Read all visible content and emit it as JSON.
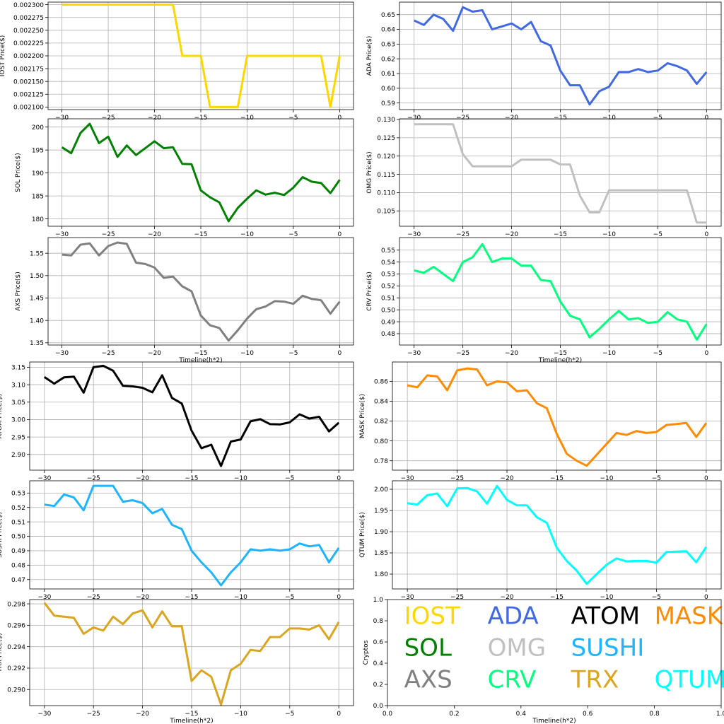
{
  "chart_data": [
    {
      "type": "line",
      "ylabel": "IOST Price($)",
      "xlabel": "",
      "color": "#FFD700",
      "xticks": [
        -30,
        -25,
        -20,
        -15,
        -10,
        -5,
        0
      ],
      "xtick_labels": [
        "−30",
        "−25",
        "−20",
        "−15",
        "−10",
        "−5",
        "0"
      ],
      "ylim": [
        0.002095,
        0.002305
      ],
      "yticks": [
        0.0021,
        0.002125,
        0.00215,
        0.002175,
        0.0022,
        0.002225,
        0.00225,
        0.002275,
        0.0023
      ],
      "ytick_labels": [
        "0.002100",
        "0.002125",
        "0.002150",
        "0.002175",
        "0.002200",
        "0.002225",
        "0.002250",
        "0.002275",
        "0.002300"
      ],
      "x": [
        -30,
        -29,
        -28,
        -27,
        -26,
        -25,
        -24,
        -23,
        -22,
        -21,
        -20,
        -19,
        -18,
        -17,
        -16,
        -15,
        -14,
        -13,
        -12,
        -11,
        -10,
        -9,
        -8,
        -7,
        -6,
        -5,
        -4,
        -3,
        -2,
        -1,
        0
      ],
      "values": [
        0.0023,
        0.0023,
        0.0023,
        0.0023,
        0.0023,
        0.0023,
        0.0023,
        0.0023,
        0.0023,
        0.0023,
        0.0023,
        0.0023,
        0.0023,
        0.0022,
        0.0022,
        0.0022,
        0.0021,
        0.0021,
        0.0021,
        0.0021,
        0.0022,
        0.0022,
        0.0022,
        0.0022,
        0.0022,
        0.0022,
        0.0022,
        0.0022,
        0.0022,
        0.0021,
        0.0022
      ]
    },
    {
      "type": "line",
      "ylabel": "ADA Price($)",
      "xlabel": "",
      "color": "#4169E1",
      "xticks": [
        -30,
        -25,
        -20,
        -15,
        -10,
        -5,
        0
      ],
      "xtick_labels": [
        "−30",
        "−25",
        "−20",
        "−15",
        "−10",
        "−5",
        "0"
      ],
      "ylim": [
        0.5855,
        0.6585
      ],
      "yticks": [
        0.59,
        0.6,
        0.61,
        0.62,
        0.63,
        0.64,
        0.65
      ],
      "ytick_labels": [
        "0.59",
        "0.60",
        "0.61",
        "0.62",
        "0.63",
        "0.64",
        "0.65"
      ],
      "x": [
        -30,
        -29,
        -28,
        -27,
        -26,
        -25,
        -24,
        -23,
        -22,
        -21,
        -20,
        -19,
        -18,
        -17,
        -16,
        -15,
        -14,
        -13,
        -12,
        -11,
        -10,
        -9,
        -8,
        -7,
        -6,
        -5,
        -4,
        -3,
        -2,
        -1,
        0
      ],
      "values": [
        0.646,
        0.643,
        0.65,
        0.647,
        0.639,
        0.655,
        0.652,
        0.653,
        0.64,
        0.642,
        0.644,
        0.64,
        0.645,
        0.632,
        0.629,
        0.612,
        0.602,
        0.602,
        0.589,
        0.598,
        0.601,
        0.611,
        0.611,
        0.613,
        0.611,
        0.612,
        0.617,
        0.615,
        0.612,
        0.603,
        0.611
      ]
    },
    {
      "type": "line",
      "ylabel": "SOL Price($)",
      "xlabel": "",
      "color": "#008000",
      "xticks": [
        -30,
        -25,
        -20,
        -15,
        -10,
        -5,
        0
      ],
      "xtick_labels": [
        "−30",
        "−25",
        "−20",
        "−15",
        "−10",
        "−5",
        "0"
      ],
      "ylim": [
        178.4,
        201.8
      ],
      "yticks": [
        180,
        185,
        190,
        195,
        200
      ],
      "ytick_labels": [
        "180",
        "185",
        "190",
        "195",
        "200"
      ],
      "x": [
        -30,
        -29,
        -28,
        -27,
        -26,
        -25,
        -24,
        -23,
        -22,
        -21,
        -20,
        -19,
        -18,
        -17,
        -16,
        -15,
        -14,
        -13,
        -12,
        -11,
        -10,
        -9,
        -8,
        -7,
        -6,
        -5,
        -4,
        -3,
        -2,
        -1,
        0
      ],
      "values": [
        195.6,
        194.3,
        198.7,
        200.7,
        196.5,
        197.9,
        193.5,
        196.0,
        193.9,
        195.4,
        196.9,
        195.4,
        195.6,
        192.0,
        191.9,
        186.2,
        184.7,
        183.6,
        179.5,
        182.4,
        184.4,
        186.2,
        185.3,
        185.7,
        185.2,
        186.8,
        189.1,
        188.1,
        187.8,
        185.6,
        188.5
      ]
    },
    {
      "type": "line",
      "ylabel": "OMG Price($)",
      "xlabel": "",
      "color": "#C0C0C0",
      "xticks": [
        -30,
        -25,
        -20,
        -15,
        -10,
        -5,
        0
      ],
      "xtick_labels": [
        "−30",
        "−25",
        "−20",
        "−15",
        "−10",
        "−5",
        "0"
      ],
      "ylim": [
        0.1008,
        0.1302
      ],
      "yticks": [
        0.105,
        0.11,
        0.115,
        0.12,
        0.125,
        0.13
      ],
      "ytick_labels": [
        "0.105",
        "0.110",
        "0.115",
        "0.120",
        "0.125",
        "0.130"
      ],
      "x": [
        -30,
        -29,
        -28,
        -27,
        -26,
        -25,
        -24,
        -23,
        -22,
        -21,
        -20,
        -19,
        -18,
        -17,
        -16,
        -15,
        -14,
        -13,
        -12,
        -11,
        -10,
        -9,
        -8,
        -7,
        -6,
        -5,
        -4,
        -3,
        -2,
        -1,
        0
      ],
      "values": [
        0.1287,
        0.1287,
        0.1287,
        0.1287,
        0.1287,
        0.1205,
        0.1172,
        0.1172,
        0.1172,
        0.1172,
        0.1172,
        0.119,
        0.119,
        0.119,
        0.119,
        0.1177,
        0.1177,
        0.1092,
        0.1046,
        0.1046,
        0.1106,
        0.1106,
        0.1106,
        0.1106,
        0.1106,
        0.1106,
        0.1106,
        0.1106,
        0.1106,
        0.1018,
        0.1018
      ]
    },
    {
      "type": "line",
      "ylabel": "AXS Price($)",
      "xlabel": "Timeline(h*2)",
      "color": "#808080",
      "xticks": [
        -30,
        -25,
        -20,
        -15,
        -10,
        -5,
        0
      ],
      "xtick_labels": [
        "−30",
        "−25",
        "−20",
        "−15",
        "−10",
        "−5",
        "0"
      ],
      "ylim": [
        1.345,
        1.585
      ],
      "yticks": [
        1.35,
        1.4,
        1.45,
        1.5,
        1.55
      ],
      "ytick_labels": [
        "1.35",
        "1.40",
        "1.45",
        "1.50",
        "1.55"
      ],
      "x": [
        -30,
        -29,
        -28,
        -27,
        -26,
        -25,
        -24,
        -23,
        -22,
        -21,
        -20,
        -19,
        -18,
        -17,
        -16,
        -15,
        -14,
        -13,
        -12,
        -11,
        -10,
        -9,
        -8,
        -7,
        -6,
        -5,
        -4,
        -3,
        -2,
        -1,
        0
      ],
      "values": [
        1.547,
        1.545,
        1.569,
        1.572,
        1.545,
        1.566,
        1.574,
        1.571,
        1.529,
        1.526,
        1.518,
        1.495,
        1.498,
        1.476,
        1.465,
        1.411,
        1.389,
        1.383,
        1.355,
        1.378,
        1.404,
        1.425,
        1.431,
        1.443,
        1.442,
        1.437,
        1.455,
        1.448,
        1.445,
        1.415,
        1.442
      ]
    },
    {
      "type": "line",
      "ylabel": "CRV Price($)",
      "xlabel": "Timeline(h*2)",
      "color": "#00FF7F",
      "xticks": [
        -30,
        -25,
        -20,
        -15,
        -10,
        -5,
        0
      ],
      "xtick_labels": [
        "−30",
        "−25",
        "−20",
        "−15",
        "−10",
        "−5",
        "0"
      ],
      "ylim": [
        0.4705,
        0.5605
      ],
      "yticks": [
        0.48,
        0.49,
        0.5,
        0.51,
        0.52,
        0.53,
        0.54,
        0.55
      ],
      "ytick_labels": [
        "0.48",
        "0.49",
        "0.50",
        "0.51",
        "0.52",
        "0.53",
        "0.54",
        "0.55"
      ],
      "x": [
        -30,
        -29,
        -28,
        -27,
        -26,
        -25,
        -24,
        -23,
        -22,
        -21,
        -20,
        -19,
        -18,
        -17,
        -16,
        -15,
        -14,
        -13,
        -12,
        -11,
        -10,
        -9,
        -8,
        -7,
        -6,
        -5,
        -4,
        -3,
        -2,
        -1,
        0
      ],
      "values": [
        0.533,
        0.531,
        0.536,
        0.53,
        0.524,
        0.54,
        0.544,
        0.555,
        0.54,
        0.543,
        0.543,
        0.537,
        0.537,
        0.525,
        0.524,
        0.507,
        0.495,
        0.492,
        0.477,
        0.484,
        0.492,
        0.499,
        0.492,
        0.493,
        0.489,
        0.49,
        0.498,
        0.492,
        0.49,
        0.475,
        0.488
      ]
    },
    {
      "type": "line",
      "ylabel": "ATOM  Price($)",
      "xlabel": "",
      "color": "#000000",
      "xticks": [
        -30,
        -25,
        -20,
        -15,
        -10,
        -5,
        0
      ],
      "xtick_labels": [
        "−30",
        "−25",
        "−20",
        "−15",
        "−10",
        "−5",
        "0"
      ],
      "ylim": [
        2.855,
        3.165
      ],
      "yticks": [
        2.9,
        2.95,
        3.0,
        3.05,
        3.1,
        3.15
      ],
      "ytick_labels": [
        "2.90",
        "2.95",
        "3.00",
        "3.05",
        "3.10",
        "3.15"
      ],
      "x": [
        -30,
        -29,
        -28,
        -27,
        -26,
        -25,
        -24,
        -23,
        -22,
        -21,
        -20,
        -19,
        -18,
        -17,
        -16,
        -15,
        -14,
        -13,
        -12,
        -11,
        -10,
        -9,
        -8,
        -7,
        -6,
        -5,
        -4,
        -3,
        -2,
        -1,
        0
      ],
      "values": [
        3.122,
        3.103,
        3.121,
        3.123,
        3.077,
        3.15,
        3.154,
        3.14,
        3.097,
        3.095,
        3.091,
        3.078,
        3.127,
        3.062,
        3.046,
        2.968,
        2.918,
        2.928,
        2.867,
        2.937,
        2.943,
        2.995,
        3.001,
        2.987,
        2.986,
        2.992,
        3.015,
        3.003,
        3.008,
        2.966,
        2.991
      ]
    },
    {
      "type": "line",
      "ylabel": "MASK  Price($)",
      "xlabel": "",
      "color": "#FF8C00",
      "xticks": [
        -30,
        -25,
        -20,
        -15,
        -10,
        -5,
        0
      ],
      "xtick_labels": [
        "−30",
        "−25",
        "−20",
        "−15",
        "−10",
        "−5",
        "0"
      ],
      "ylim": [
        0.7705,
        0.8795
      ],
      "yticks": [
        0.78,
        0.8,
        0.82,
        0.84,
        0.86
      ],
      "ytick_labels": [
        "0.78",
        "0.80",
        "0.82",
        "0.84",
        "0.86"
      ],
      "x": [
        -30,
        -29,
        -28,
        -27,
        -26,
        -25,
        -24,
        -23,
        -22,
        -21,
        -20,
        -19,
        -18,
        -17,
        -16,
        -15,
        -14,
        -13,
        -12,
        -11,
        -10,
        -9,
        -8,
        -7,
        -6,
        -5,
        -4,
        -3,
        -2,
        -1,
        0
      ],
      "values": [
        0.856,
        0.854,
        0.866,
        0.865,
        0.851,
        0.871,
        0.873,
        0.872,
        0.856,
        0.86,
        0.859,
        0.85,
        0.851,
        0.838,
        0.833,
        0.807,
        0.787,
        0.78,
        0.775,
        0.786,
        0.797,
        0.808,
        0.806,
        0.81,
        0.808,
        0.809,
        0.816,
        0.817,
        0.818,
        0.804,
        0.818
      ]
    },
    {
      "type": "line",
      "ylabel": "SUSHI  Price($)",
      "xlabel": "",
      "color": "#1EB4FF",
      "xticks": [
        -30,
        -25,
        -20,
        -15,
        -10,
        -5,
        0
      ],
      "xtick_labels": [
        "−30",
        "−25",
        "−20",
        "−15",
        "−10",
        "−5",
        "0"
      ],
      "ylim": [
        0.4635,
        0.5385
      ],
      "yticks": [
        0.47,
        0.48,
        0.49,
        0.5,
        0.51,
        0.52,
        0.53
      ],
      "ytick_labels": [
        "0.47",
        "0.48",
        "0.49",
        "0.50",
        "0.51",
        "0.52",
        "0.53"
      ],
      "x": [
        -30,
        -29,
        -28,
        -27,
        -26,
        -25,
        -24,
        -23,
        -22,
        -21,
        -20,
        -19,
        -18,
        -17,
        -16,
        -15,
        -14,
        -13,
        -12,
        -11,
        -10,
        -9,
        -8,
        -7,
        -6,
        -5,
        -4,
        -3,
        -2,
        -1,
        0
      ],
      "values": [
        0.522,
        0.521,
        0.529,
        0.527,
        0.518,
        0.535,
        0.535,
        0.535,
        0.524,
        0.525,
        0.523,
        0.516,
        0.519,
        0.508,
        0.505,
        0.49,
        0.482,
        0.475,
        0.466,
        0.475,
        0.482,
        0.491,
        0.49,
        0.491,
        0.49,
        0.491,
        0.495,
        0.493,
        0.494,
        0.482,
        0.492
      ]
    },
    {
      "type": "line",
      "ylabel": "QTUM Price($)",
      "xlabel": "",
      "color": "#00FFFF",
      "xticks": [
        -30,
        -25,
        -20,
        -15,
        -10,
        -5,
        0
      ],
      "xtick_labels": [
        "−30",
        "−25",
        "−20",
        "−15",
        "−10",
        "−5",
        "0"
      ],
      "ylim": [
        1.765,
        2.02
      ],
      "yticks": [
        1.8,
        1.85,
        1.9,
        1.95,
        2.0
      ],
      "ytick_labels": [
        "1.80",
        "1.85",
        "1.90",
        "1.95",
        "2.00"
      ],
      "x": [
        -30,
        -29,
        -28,
        -27,
        -26,
        -25,
        -24,
        -23,
        -22,
        -21,
        -20,
        -19,
        -18,
        -17,
        -16,
        -15,
        -14,
        -13,
        -12,
        -11,
        -10,
        -9,
        -8,
        -7,
        -6,
        -5,
        -4,
        -3,
        -2,
        -1,
        0
      ],
      "values": [
        1.967,
        1.964,
        1.986,
        1.99,
        1.96,
        2.002,
        2.003,
        1.995,
        1.966,
        2.008,
        1.975,
        1.962,
        1.962,
        1.934,
        1.921,
        1.862,
        1.831,
        1.808,
        1.777,
        1.8,
        1.822,
        1.837,
        1.83,
        1.831,
        1.831,
        1.827,
        1.852,
        1.853,
        1.854,
        1.828,
        1.864
      ]
    },
    {
      "type": "line",
      "ylabel": "TRX Price($)",
      "xlabel": "Timeline(h*2)",
      "color": "#DAA520",
      "xticks": [
        -30,
        -25,
        -20,
        -15,
        -10,
        -5,
        0
      ],
      "xtick_labels": [
        "−30",
        "−25",
        "−20",
        "−15",
        "−10",
        "−5",
        "0"
      ],
      "ylim": [
        0.2885,
        0.2984
      ],
      "yticks": [
        0.29,
        0.292,
        0.294,
        0.296,
        0.298
      ],
      "ytick_labels": [
        "0.290",
        "0.292",
        "0.294",
        "0.296",
        "0.298"
      ],
      "x": [
        -30,
        -29,
        -28,
        -27,
        -26,
        -25,
        -24,
        -23,
        -22,
        -21,
        -20,
        -19,
        -18,
        -17,
        -16,
        -15,
        -14,
        -13,
        -12,
        -11,
        -10,
        -9,
        -8,
        -7,
        -6,
        -5,
        -4,
        -3,
        -2,
        -1,
        0
      ],
      "values": [
        0.2981,
        0.2969,
        0.2968,
        0.2967,
        0.2952,
        0.2958,
        0.2955,
        0.2968,
        0.2961,
        0.2971,
        0.2974,
        0.2958,
        0.2973,
        0.2959,
        0.2959,
        0.2908,
        0.2918,
        0.2912,
        0.2886,
        0.2918,
        0.2924,
        0.2937,
        0.2936,
        0.2949,
        0.2949,
        0.2957,
        0.2957,
        0.2956,
        0.296,
        0.2947,
        0.2963
      ]
    },
    {
      "type": "text",
      "ylabel": "Cryptos",
      "xlabel": "Timeline(h*2)",
      "xlim": [
        0,
        1
      ],
      "ylim": [
        0,
        1
      ],
      "xticks": [
        0,
        0.2,
        0.4,
        0.6,
        0.8,
        1.0
      ],
      "xtick_labels": [
        "0.0",
        "0.2",
        "0.4",
        "0.6",
        "0.8",
        "1.0"
      ],
      "yticks": [
        0,
        0.2,
        0.4,
        0.6,
        0.8,
        1.0
      ],
      "ytick_labels": [
        "0.0",
        "0.2",
        "0.4",
        "0.6",
        "0.8",
        "1.0"
      ],
      "labels": [
        {
          "text": "IOST",
          "color": "#FFD700",
          "x": 0.05,
          "y": 0.77
        },
        {
          "text": "ADA",
          "color": "#4169E1",
          "x": 0.3,
          "y": 0.77
        },
        {
          "text": "ATOM",
          "color": "#000000",
          "x": 0.55,
          "y": 0.77
        },
        {
          "text": "MASK",
          "color": "#FF8C00",
          "x": 0.8,
          "y": 0.77
        },
        {
          "text": "SOL",
          "color": "#008000",
          "x": 0.05,
          "y": 0.47
        },
        {
          "text": "OMG",
          "color": "#C0C0C0",
          "x": 0.3,
          "y": 0.47
        },
        {
          "text": "SUSHI",
          "color": "#1EB4FF",
          "x": 0.55,
          "y": 0.47
        },
        {
          "text": "AXS",
          "color": "#808080",
          "x": 0.05,
          "y": 0.17
        },
        {
          "text": "CRV",
          "color": "#00FF7F",
          "x": 0.3,
          "y": 0.17
        },
        {
          "text": "TRX",
          "color": "#DAA520",
          "x": 0.55,
          "y": 0.17
        },
        {
          "text": "QTUM",
          "color": "#00FFFF",
          "x": 0.8,
          "y": 0.17
        }
      ]
    }
  ]
}
